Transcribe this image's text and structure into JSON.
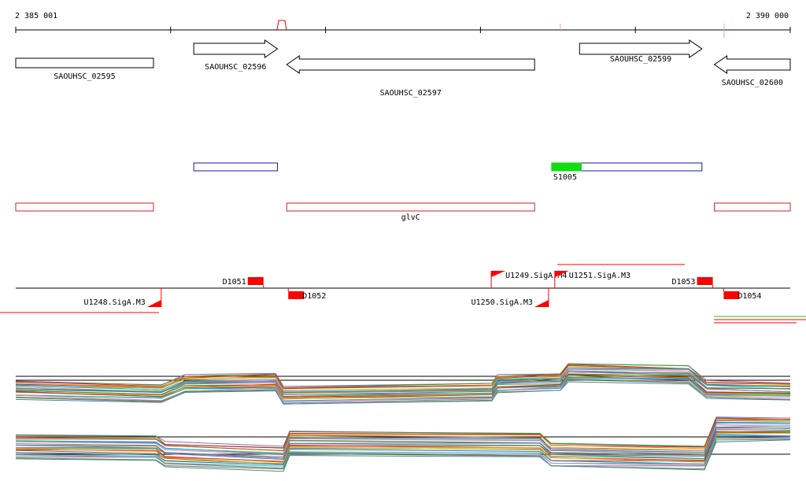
{
  "axis": {
    "start_label": "2 385 001",
    "end_label": "2 390 000"
  },
  "genes": [
    {
      "name": "SAOUHSC_02595",
      "start": 2385001,
      "end": 2385890,
      "strand": "+"
    },
    {
      "name": "SAOUHSC_02596",
      "start": 2386150,
      "end": 2386690,
      "strand": "+"
    },
    {
      "name": "SAOUHSC_02597",
      "start": 2386750,
      "end": 2388350,
      "strand": "-"
    },
    {
      "name": "SAOUHSC_02599",
      "start": 2388640,
      "end": 2389430,
      "strand": "+"
    },
    {
      "name": "SAOUHSC_02600",
      "start": 2389510,
      "end": 2390000,
      "strand": "-"
    }
  ],
  "operons": {
    "blue": [
      {
        "start": 2386150,
        "end": 2386690
      },
      {
        "start": 2388650,
        "end": 2389430
      }
    ],
    "green": [
      {
        "name": "S1005",
        "start": 2388460,
        "end": 2388650
      }
    ],
    "red": [
      {
        "name": "",
        "start": 2385001,
        "end": 2385890
      },
      {
        "name": "glvC",
        "start": 2386750,
        "end": 2388350
      },
      {
        "name": "",
        "start": 2389510,
        "end": 2390000
      }
    ]
  },
  "promoters": [
    {
      "name": "U1248.SigA.M3",
      "pos": 2385940,
      "strand": "-"
    },
    {
      "name": "U1249.SigA.M4",
      "pos": 2388070,
      "strand": "+"
    },
    {
      "name": "U1250.SigA.M3",
      "pos": 2388440,
      "strand": "-"
    },
    {
      "name": "U1251.SigA.M3",
      "pos": 2388480,
      "strand": "+"
    }
  ],
  "terminators": [
    {
      "name": "D1051",
      "pos": 2386600,
      "strand": "+"
    },
    {
      "name": "D1052",
      "pos": 2386760,
      "strand": "-"
    },
    {
      "name": "D1053",
      "pos": 2389500,
      "strand": "+"
    },
    {
      "name": "D1054",
      "pos": 2389570,
      "strand": "-"
    }
  ],
  "colors": {
    "gene": "#000000",
    "operon_blue": "#1a1aa6",
    "operon_red": "#cc2222",
    "operon_green": "#11dd11",
    "feature_red": "#ff0000",
    "axis": "#000000"
  },
  "profile_colors": [
    "#9467bd",
    "#2ca02c",
    "#d62728",
    "#ff7f0e",
    "#8c564b",
    "#bcbd22",
    "#1f77b4",
    "#17becf",
    "#e377c2",
    "#7f7f7f",
    "#6b8e23",
    "#4682b4"
  ]
}
